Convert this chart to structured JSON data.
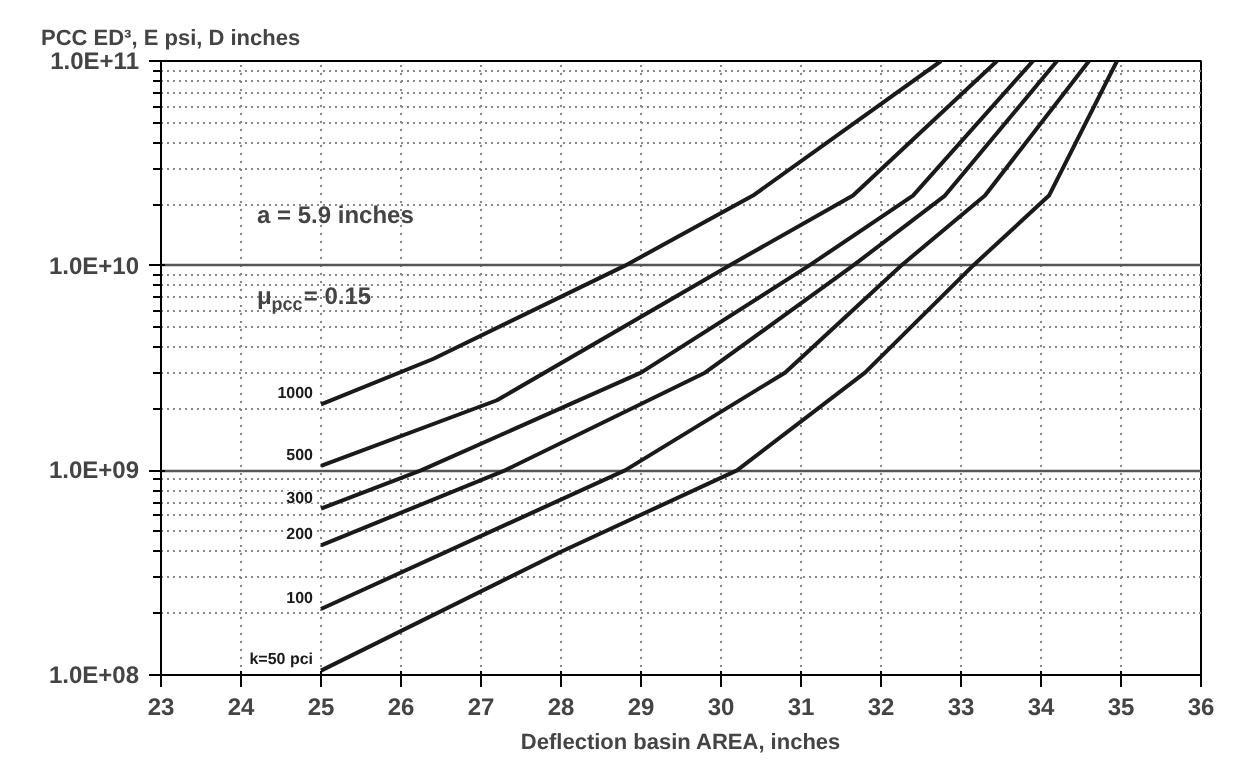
{
  "chart_data": {
    "type": "line",
    "title": "PCC ED³, E psi, D inches",
    "xlabel": "Deflection basin AREA, inches",
    "log": true,
    "grid": true,
    "marker": "none",
    "line_style": "solid",
    "xlim": [
      23,
      36
    ],
    "xticks": [
      23,
      24,
      25,
      26,
      27,
      28,
      29,
      30,
      31,
      32,
      33,
      34,
      35,
      36
    ],
    "ylim": [
      100000000.0,
      100000000000.0
    ],
    "yticks": [
      {
        "value": 100000000.0,
        "label": "1.0E+08"
      },
      {
        "value": 1000000000.0,
        "label": "1.0E+09"
      },
      {
        "value": 10000000000.0,
        "label": "1.0E+10"
      },
      {
        "value": 100000000000.0,
        "label": "1.0E+11"
      }
    ],
    "annotations": [
      "a = 5.9 inches",
      "μ$_{pcc}$= 0.15"
    ],
    "series": [
      {
        "name": "1000",
        "color": "#1a1a1a",
        "x": [
          25,
          26.4,
          28.8,
          30.4,
          32.75
        ],
        "values": [
          2100000000.0,
          3500000000.0,
          10000000000.0,
          22000000000.0,
          100000000000.0
        ]
      },
      {
        "name": "500",
        "color": "#1a1a1a",
        "x": [
          25,
          27.2,
          30.1,
          31.65,
          33.45
        ],
        "values": [
          1050000000.0,
          2200000000.0,
          10000000000.0,
          22000000000.0,
          100000000000.0
        ]
      },
      {
        "name": "300",
        "color": "#1a1a1a",
        "x": [
          25,
          26.25,
          29,
          31.1,
          32.4,
          33.9
        ],
        "values": [
          650000000.0,
          1000000000.0,
          3000000000.0,
          10000000000.0,
          22000000000.0,
          100000000000.0
        ]
      },
      {
        "name": "200",
        "color": "#1a1a1a",
        "x": [
          25,
          27.3,
          29.8,
          31.65,
          32.8,
          34.2
        ],
        "values": [
          430000000.0,
          1000000000.0,
          3000000000.0,
          10000000000.0,
          22000000000.0,
          100000000000.0
        ]
      },
      {
        "name": "100",
        "color": "#1a1a1a",
        "x": [
          25,
          28.8,
          30.8,
          32.25,
          33.3,
          34.6
        ],
        "values": [
          210000000.0,
          1000000000.0,
          3000000000.0,
          10000000000.0,
          22000000000.0,
          100000000000.0
        ]
      },
      {
        "name": "k=50 pci",
        "color": "#1a1a1a",
        "x": [
          25,
          28,
          30.2,
          31.8,
          33.15,
          34.1,
          34.95
        ],
        "values": [
          105000000.0,
          400000000.0,
          1000000000.0,
          3000000000.0,
          10000000000.0,
          22000000000.0,
          100000000000.0
        ]
      }
    ]
  }
}
